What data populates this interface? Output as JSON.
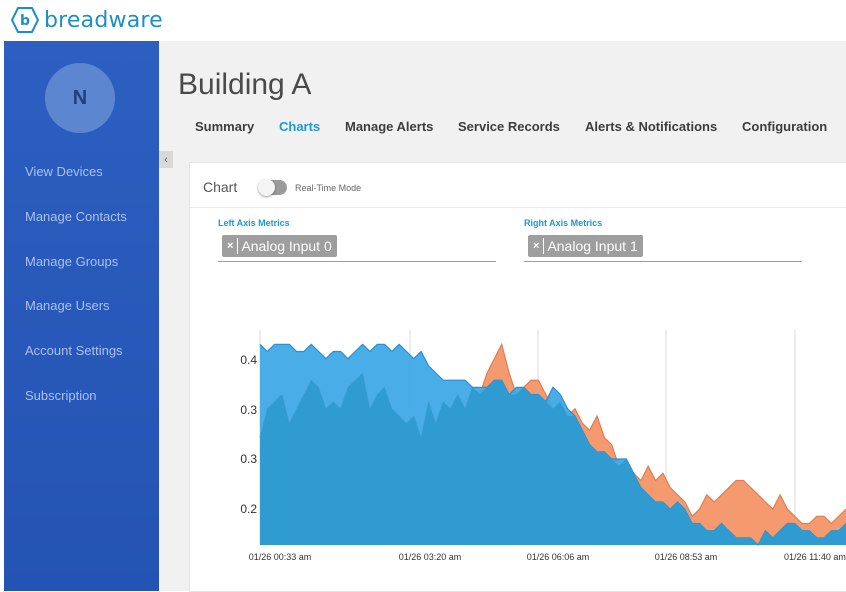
{
  "brand": {
    "name": "breadware",
    "accent": "#1e8fc6"
  },
  "sidebar": {
    "avatar_initial": "N",
    "items": [
      {
        "label": "View Devices"
      },
      {
        "label": "Manage Contacts"
      },
      {
        "label": "Manage Groups"
      },
      {
        "label": "Manage Users"
      },
      {
        "label": "Account Settings"
      },
      {
        "label": "Subscription"
      }
    ],
    "collapse_icon": "chevron-left-icon"
  },
  "page": {
    "title": "Building A",
    "tabs": [
      {
        "label": "Summary",
        "active": false
      },
      {
        "label": "Charts",
        "active": true
      },
      {
        "label": "Manage Alerts",
        "active": false
      },
      {
        "label": "Service Records",
        "active": false
      },
      {
        "label": "Alerts & Notifications",
        "active": false
      },
      {
        "label": "Configuration",
        "active": false
      }
    ]
  },
  "card": {
    "title": "Chart",
    "realtime_label": "Real-Time Mode",
    "realtime_on": false,
    "left_axis": {
      "label": "Left Axis Metrics",
      "chip": "Analog Input 0",
      "remove_icon": "close-icon"
    },
    "right_axis": {
      "label": "Right Axis Metrics",
      "chip": "Analog Input 1",
      "remove_icon": "close-icon"
    }
  },
  "chart_data": {
    "type": "area",
    "y_tick_labels": [
      "0.4",
      "0.3",
      "0.3",
      "0.2"
    ],
    "x_tick_labels": [
      "01/26 00:33 am",
      "01/26 03:20 am",
      "01/26 06:06 am",
      "01/26 08:53 am",
      "01/26 11:40 am"
    ],
    "ylim": [
      0.15,
      0.45
    ],
    "series": [
      {
        "name": "Analog Input 0",
        "color": "#3fa9e6",
        "values": [
          0.43,
          0.42,
          0.43,
          0.43,
          0.43,
          0.42,
          0.42,
          0.43,
          0.42,
          0.41,
          0.42,
          0.42,
          0.41,
          0.42,
          0.43,
          0.42,
          0.43,
          0.43,
          0.42,
          0.43,
          0.42,
          0.41,
          0.42,
          0.4,
          0.39,
          0.38,
          0.38,
          0.38,
          0.38,
          0.37,
          0.37,
          0.37,
          0.38,
          0.38,
          0.36,
          0.37,
          0.37,
          0.36,
          0.36,
          0.35,
          0.37,
          0.36,
          0.34,
          0.33,
          0.31,
          0.29,
          0.28,
          0.28,
          0.27,
          0.27,
          0.27,
          0.25,
          0.23,
          0.22,
          0.21,
          0.21,
          0.2,
          0.21,
          0.2,
          0.18,
          0.18,
          0.17,
          0.17,
          0.18,
          0.17,
          0.16,
          0.16,
          0.16,
          0.15,
          0.17,
          0.16,
          0.17,
          0.18,
          0.18,
          0.17,
          0.17,
          0.16,
          0.16,
          0.17,
          0.17,
          0.18
        ]
      },
      {
        "name": "Analog Input 1",
        "color": "#f59a6e",
        "values": [
          0.3,
          0.34,
          0.35,
          0.36,
          0.32,
          0.34,
          0.36,
          0.38,
          0.37,
          0.34,
          0.35,
          0.34,
          0.37,
          0.38,
          0.39,
          0.34,
          0.36,
          0.37,
          0.34,
          0.33,
          0.32,
          0.33,
          0.3,
          0.35,
          0.32,
          0.35,
          0.34,
          0.36,
          0.34,
          0.37,
          0.36,
          0.39,
          0.41,
          0.43,
          0.39,
          0.36,
          0.37,
          0.38,
          0.38,
          0.36,
          0.34,
          0.35,
          0.33,
          0.34,
          0.32,
          0.31,
          0.33,
          0.3,
          0.29,
          0.26,
          0.27,
          0.25,
          0.24,
          0.26,
          0.24,
          0.25,
          0.23,
          0.22,
          0.21,
          0.19,
          0.2,
          0.22,
          0.21,
          0.22,
          0.23,
          0.24,
          0.24,
          0.23,
          0.22,
          0.21,
          0.2,
          0.22,
          0.2,
          0.19,
          0.18,
          0.18,
          0.19,
          0.19,
          0.18,
          0.19,
          0.2
        ]
      }
    ]
  }
}
